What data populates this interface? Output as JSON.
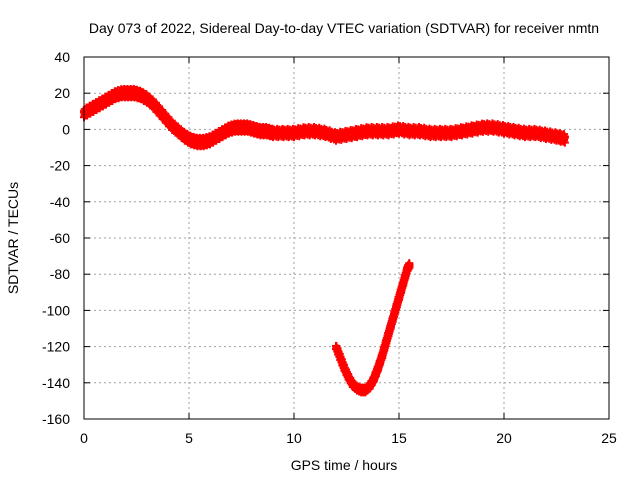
{
  "chart_data": {
    "type": "scatter",
    "title": "Day 073 of 2022, Sidereal Day-to-day VTEC variation (SDTVAR) for receiver nmtn",
    "xlabel": "GPS time / hours",
    "ylabel": "SDTVAR / TECUs",
    "xlim": [
      0,
      25
    ],
    "ylim": [
      -160,
      40
    ],
    "xticks": [
      0,
      5,
      10,
      15,
      20,
      25
    ],
    "yticks": [
      40,
      20,
      0,
      -20,
      -40,
      -60,
      -80,
      -100,
      -120,
      -140,
      -160
    ],
    "grid": true,
    "marker": "plus",
    "colors": {
      "series": "#ff0000",
      "grid": "#a0a0a0",
      "axes": "#000000"
    },
    "series": [
      {
        "name": "main-trace",
        "spread": 3,
        "points": [
          [
            0.0,
            9
          ],
          [
            0.3,
            11
          ],
          [
            0.6,
            13
          ],
          [
            0.9,
            15
          ],
          [
            1.2,
            17
          ],
          [
            1.5,
            19
          ],
          [
            1.8,
            20
          ],
          [
            2.1,
            20
          ],
          [
            2.4,
            20
          ],
          [
            2.7,
            19
          ],
          [
            3.0,
            17
          ],
          [
            3.3,
            14
          ],
          [
            3.6,
            10
          ],
          [
            3.9,
            6
          ],
          [
            4.2,
            2
          ],
          [
            4.5,
            -1
          ],
          [
            4.8,
            -4
          ],
          [
            5.1,
            -6
          ],
          [
            5.4,
            -7
          ],
          [
            5.7,
            -7
          ],
          [
            6.0,
            -6
          ],
          [
            6.3,
            -4
          ],
          [
            6.6,
            -2
          ],
          [
            6.9,
            0
          ],
          [
            7.2,
            1
          ],
          [
            7.5,
            1
          ],
          [
            7.8,
            1
          ],
          [
            8.1,
            0
          ],
          [
            8.4,
            -1
          ],
          [
            8.7,
            -1
          ],
          [
            9.0,
            -2
          ],
          [
            9.5,
            -2
          ],
          [
            10.0,
            -2
          ],
          [
            10.5,
            -1
          ],
          [
            11.0,
            -1
          ],
          [
            11.5,
            -2
          ],
          [
            12.0,
            -4
          ],
          [
            12.5,
            -3
          ],
          [
            13.0,
            -2
          ],
          [
            13.5,
            -1
          ],
          [
            14.0,
            -1
          ],
          [
            14.5,
            -1
          ],
          [
            15.0,
            0
          ],
          [
            15.5,
            -1
          ],
          [
            16.0,
            -1
          ],
          [
            16.5,
            -2
          ],
          [
            17.0,
            -2
          ],
          [
            17.5,
            -2
          ],
          [
            18.0,
            -1
          ],
          [
            18.5,
            0
          ],
          [
            19.0,
            1
          ],
          [
            19.5,
            1
          ],
          [
            20.0,
            0
          ],
          [
            20.5,
            -1
          ],
          [
            21.0,
            -2
          ],
          [
            21.5,
            -2
          ],
          [
            22.0,
            -3
          ],
          [
            22.5,
            -4
          ],
          [
            22.9,
            -5
          ]
        ]
      },
      {
        "name": "dip-trace",
        "spread": 1,
        "points": [
          [
            12.0,
            -120
          ],
          [
            12.2,
            -126
          ],
          [
            12.4,
            -132
          ],
          [
            12.6,
            -137
          ],
          [
            12.8,
            -141
          ],
          [
            13.0,
            -143
          ],
          [
            13.2,
            -144
          ],
          [
            13.4,
            -144
          ],
          [
            13.6,
            -142
          ],
          [
            13.8,
            -138
          ],
          [
            14.0,
            -132
          ],
          [
            14.2,
            -125
          ],
          [
            14.4,
            -117
          ],
          [
            14.6,
            -109
          ],
          [
            14.8,
            -101
          ],
          [
            15.0,
            -93
          ],
          [
            15.2,
            -85
          ],
          [
            15.4,
            -77
          ],
          [
            15.5,
            -75
          ]
        ]
      }
    ]
  }
}
